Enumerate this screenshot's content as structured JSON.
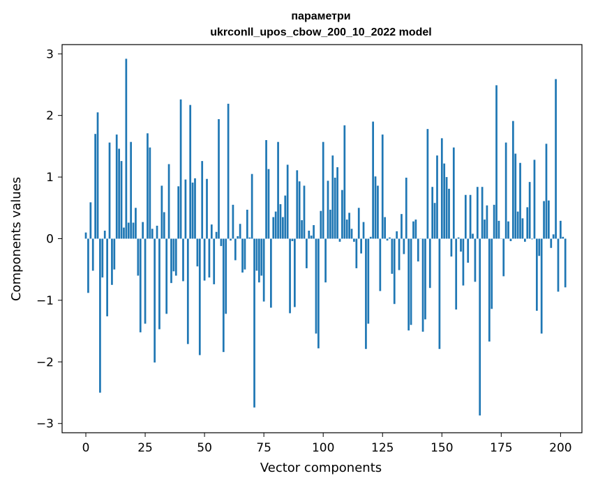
{
  "chart_data": {
    "type": "bar",
    "title": "параметри",
    "subtitle": "ukrconll_upos_cbow_200_10_2022 model",
    "xlabel": "Vector components",
    "ylabel": "Components values",
    "xlim": [
      -10,
      209
    ],
    "ylim": [
      -3.15,
      3.15
    ],
    "xticks": [
      0,
      25,
      50,
      75,
      100,
      125,
      150,
      175,
      200
    ],
    "yticks": [
      -3,
      -2,
      -1,
      0,
      1,
      2,
      3
    ],
    "x_tick_labels": [
      "0",
      "25",
      "50",
      "75",
      "100",
      "125",
      "150",
      "175",
      "200"
    ],
    "y_tick_labels": [
      "−3",
      "−2",
      "−1",
      "0",
      "1",
      "2",
      "3"
    ],
    "grid": false,
    "bar_color": "#1f77b4",
    "series": [
      {
        "values": [
          0.1,
          -0.88,
          0.59,
          -0.52,
          1.7,
          2.05,
          -2.5,
          -0.63,
          0.13,
          -1.26,
          1.56,
          -0.75,
          -0.5,
          1.69,
          1.46,
          1.26,
          0.18,
          2.92,
          0.26,
          1.57,
          0.26,
          0.5,
          -0.6,
          -1.52,
          0.27,
          -1.38,
          1.71,
          1.48,
          0.16,
          -2.01,
          0.21,
          -1.47,
          0.86,
          0.43,
          -1.22,
          1.21,
          -0.72,
          -0.53,
          -0.6,
          0.85,
          2.26,
          -0.69,
          0.96,
          -1.71,
          2.17,
          0.91,
          0.98,
          -0.45,
          -1.89,
          1.26,
          -0.68,
          0.97,
          -0.63,
          0.23,
          -0.74,
          0.11,
          1.94,
          -0.12,
          -1.84,
          -1.22,
          2.19,
          -0.03,
          0.55,
          -0.35,
          0.04,
          0.24,
          -0.55,
          -0.5,
          0.47,
          0.02,
          1.05,
          -2.74,
          -0.52,
          -0.71,
          -0.6,
          -1.02,
          1.6,
          1.13,
          -1.12,
          0.35,
          0.44,
          1.57,
          0.56,
          0.35,
          0.7,
          1.2,
          -1.21,
          -0.04,
          -1.11,
          1.11,
          0.93,
          0.3,
          0.86,
          -0.48,
          0.13,
          0.05,
          0.22,
          -1.54,
          -1.78,
          0.45,
          1.57,
          -0.71,
          0.94,
          0.47,
          1.35,
          0.99,
          1.16,
          -0.05,
          0.79,
          1.84,
          0.31,
          0.42,
          0.16,
          -0.05,
          -0.48,
          0.5,
          -0.24,
          0.27,
          -1.79,
          -1.38,
          0.03,
          1.9,
          1.01,
          0.86,
          -0.85,
          1.69,
          0.35,
          -0.03,
          0.02,
          -0.57,
          -1.06,
          0.12,
          -0.51,
          0.4,
          -0.25,
          0.99,
          -1.49,
          -1.4,
          0.28,
          0.31,
          -0.37,
          0.0,
          -1.51,
          -1.31,
          1.78,
          -0.8,
          0.84,
          0.58,
          1.35,
          -1.79,
          1.63,
          1.22,
          1.0,
          0.81,
          -0.29,
          1.48,
          -1.15,
          0.02,
          -0.21,
          -0.76,
          0.71,
          -0.39,
          0.71,
          0.08,
          -0.7,
          0.84,
          -2.87,
          0.84,
          0.31,
          0.54,
          -1.67,
          -1.14,
          0.55,
          2.49,
          0.29,
          0.0,
          -0.61,
          1.56,
          0.28,
          -0.04,
          1.91,
          1.38,
          0.44,
          1.23,
          0.33,
          -0.05,
          0.51,
          0.92,
          -0.01,
          1.28,
          -1.17,
          -0.28,
          -1.54,
          0.61,
          1.54,
          0.62,
          -0.15,
          0.07,
          2.59,
          -0.86,
          0.29,
          0.03,
          -0.79
        ]
      }
    ]
  }
}
